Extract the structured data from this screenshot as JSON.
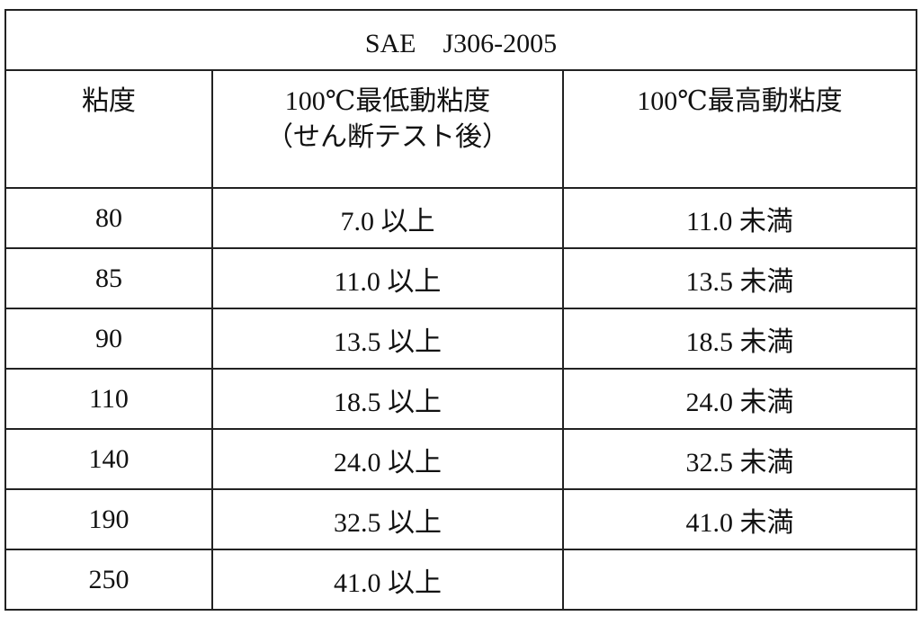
{
  "table": {
    "title": "SAE　J306-2005",
    "header": [
      "粘度",
      "100℃最低動粘度",
      "100℃最高動粘度"
    ],
    "header_note": "（せん断テスト後）",
    "rows": [
      [
        "80",
        "7.0 以上",
        "11.0 未満"
      ],
      [
        "85",
        "11.0 以上",
        "13.5 未満"
      ],
      [
        "90",
        "13.5 以上",
        "18.5 未満"
      ],
      [
        "110",
        "18.5 以上",
        "24.0 未満"
      ],
      [
        "140",
        "24.0 以上",
        "32.5 未満"
      ],
      [
        "190",
        "32.5 以上",
        "41.0 未満"
      ],
      [
        "250",
        "41.0 以上"
      ]
    ]
  }
}
